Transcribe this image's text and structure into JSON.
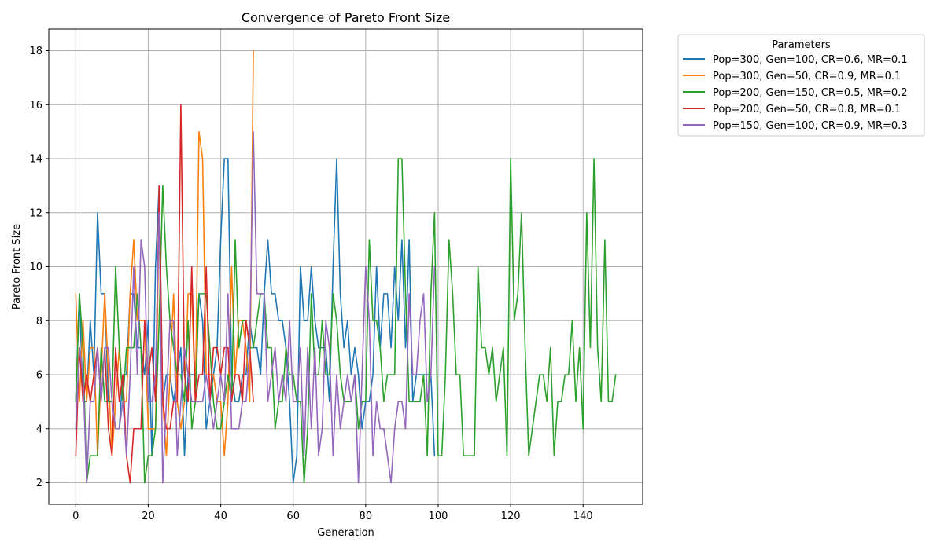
{
  "chart_data": {
    "type": "line",
    "title": "Convergence of Pareto Front Size",
    "xlabel": "Generation",
    "ylabel": "Pareto Front Size",
    "xlim": [
      -7.45,
      156.45
    ],
    "ylim": [
      1.2,
      18.8
    ],
    "xticks": [
      0,
      20,
      40,
      60,
      80,
      100,
      120,
      140
    ],
    "yticks": [
      2,
      4,
      6,
      8,
      10,
      12,
      14,
      16,
      18
    ],
    "grid": true,
    "legend": {
      "title": "Parameters",
      "placement": "outside-upper-right"
    },
    "series": [
      {
        "name": "Pop=300, Gen=100, CR=0.6, MR=0.1",
        "color": "#1f77b4",
        "values": [
          5,
          9,
          5,
          5,
          8,
          6,
          12,
          9,
          9,
          5,
          5,
          4,
          4,
          6,
          6,
          9,
          9,
          7,
          7,
          6,
          8,
          3,
          10,
          13,
          5,
          6,
          6,
          5,
          6,
          7,
          3,
          6,
          6,
          6,
          9,
          8,
          4,
          5,
          6,
          7,
          11,
          14,
          14,
          6,
          5,
          5,
          6,
          6,
          8,
          7,
          7,
          6,
          9,
          11,
          9,
          9,
          8,
          8,
          7,
          5,
          2,
          3,
          10,
          8,
          8,
          10,
          8,
          7,
          7,
          7,
          5,
          10,
          14,
          9,
          7,
          8,
          6,
          7,
          6,
          4,
          5,
          5,
          6,
          10,
          7,
          9,
          9,
          7,
          10,
          8,
          11,
          7,
          11,
          5,
          6,
          6,
          6,
          6,
          6,
          3
        ]
      },
      {
        "name": "Pop=300, Gen=50, CR=0.9, MR=0.1",
        "color": "#ff7f0e",
        "values": [
          9,
          5,
          8,
          5,
          7,
          7,
          3,
          6,
          9,
          6,
          3,
          5,
          7,
          5,
          5,
          9,
          11,
          8,
          8,
          8,
          4,
          4,
          4,
          12,
          5,
          3,
          6,
          9,
          5,
          4,
          5,
          9,
          9,
          5,
          15,
          14,
          6,
          6,
          6,
          5,
          5,
          3,
          5,
          10,
          6,
          8,
          8,
          7,
          5,
          18
        ]
      },
      {
        "name": "Pop=200, Gen=150, CR=0.5, MR=0.2",
        "color": "#2ca02c",
        "values": [
          5,
          9,
          7,
          2,
          3,
          3,
          3,
          7,
          5,
          5,
          5,
          10,
          7,
          5,
          7,
          7,
          7,
          9,
          7,
          2,
          3,
          3,
          4,
          8,
          13,
          10,
          8,
          7,
          6,
          6,
          5,
          8,
          4,
          5,
          9,
          9,
          9,
          7,
          5,
          4,
          4,
          5,
          6,
          5,
          11,
          7,
          8,
          8,
          7,
          7,
          8,
          9,
          9,
          7,
          7,
          4,
          5,
          5,
          7,
          6,
          6,
          5,
          5,
          2,
          4,
          9,
          6,
          6,
          8,
          6,
          6,
          9,
          8,
          6,
          5,
          5,
          5,
          6,
          4,
          5,
          5,
          11,
          8,
          8,
          7,
          5,
          6,
          6,
          6,
          14,
          14,
          9,
          5,
          5,
          5,
          5,
          6,
          3,
          9,
          12,
          3,
          3,
          6,
          11,
          9,
          6,
          6,
          3,
          3,
          3,
          3,
          10,
          7,
          7,
          6,
          7,
          5,
          6,
          7,
          3,
          14,
          8,
          9,
          12,
          7,
          3,
          4,
          5,
          6,
          6,
          5,
          7,
          3,
          5,
          5,
          6,
          6,
          8,
          5,
          7,
          4,
          12,
          7,
          14,
          7,
          5,
          11,
          5,
          5,
          6
        ]
      },
      {
        "name": "Pop=200, Gen=50, CR=0.8, MR=0.1",
        "color": "#d62728",
        "values": [
          3,
          7,
          5,
          6,
          5,
          6,
          7,
          5,
          7,
          4,
          3,
          7,
          5,
          6,
          3,
          2,
          4,
          4,
          4,
          8,
          6,
          7,
          5,
          13,
          5,
          4,
          4,
          5,
          5,
          16,
          6,
          5,
          10,
          5,
          6,
          6,
          10,
          5,
          7,
          7,
          6,
          7,
          7,
          5,
          6,
          6,
          5,
          8,
          7,
          5
        ]
      },
      {
        "name": "Pop=150, Gen=100, CR=0.9, MR=0.3",
        "color": "#9467bd",
        "values": [
          4,
          7,
          6,
          2,
          5,
          5,
          7,
          5,
          7,
          7,
          5,
          4,
          4,
          5,
          3,
          6,
          10,
          6,
          11,
          10,
          5,
          5,
          6,
          12,
          2,
          5,
          8,
          8,
          3,
          5,
          7,
          6,
          5,
          5,
          5,
          5,
          6,
          5,
          4,
          5,
          6,
          5,
          9,
          4,
          4,
          4,
          5,
          5,
          7,
          15,
          9,
          9,
          9,
          5,
          6,
          7,
          5,
          6,
          5,
          8,
          5,
          5,
          7,
          3,
          7,
          4,
          7,
          3,
          4,
          8,
          7,
          3,
          6,
          4,
          5,
          6,
          5,
          6,
          2,
          6,
          10,
          8,
          3,
          5,
          4,
          4,
          3,
          2,
          4,
          5,
          5,
          4,
          9,
          6,
          6,
          8,
          9,
          5,
          6,
          10
        ]
      }
    ]
  }
}
